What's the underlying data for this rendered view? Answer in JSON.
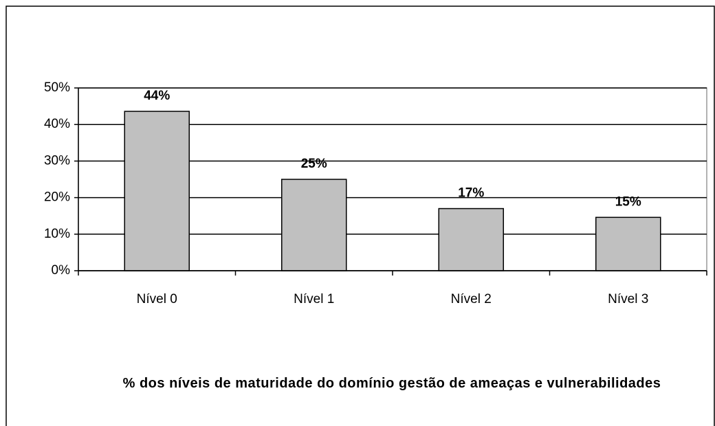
{
  "chart_data": {
    "type": "bar",
    "title": "% dos níveis de maturidade do domínio gestão de ameaças e vulnerabilidades",
    "categories": [
      "Nível 0",
      "Nível 1",
      "Nível 2",
      "Nível 3"
    ],
    "values": [
      43.6,
      25,
      17,
      14.6
    ],
    "value_labels": [
      "44%",
      "25%",
      "17%",
      "15%"
    ],
    "color": "#c0c0c0",
    "ylim": [
      0,
      50
    ],
    "yticks": [
      {
        "value": 0,
        "label": "0%"
      },
      {
        "value": 10,
        "label": "10%"
      },
      {
        "value": 20,
        "label": "20%"
      },
      {
        "value": 30,
        "label": "30%"
      },
      {
        "value": 40,
        "label": "40%"
      },
      {
        "value": 50,
        "label": "50%"
      }
    ],
    "grid": true
  }
}
